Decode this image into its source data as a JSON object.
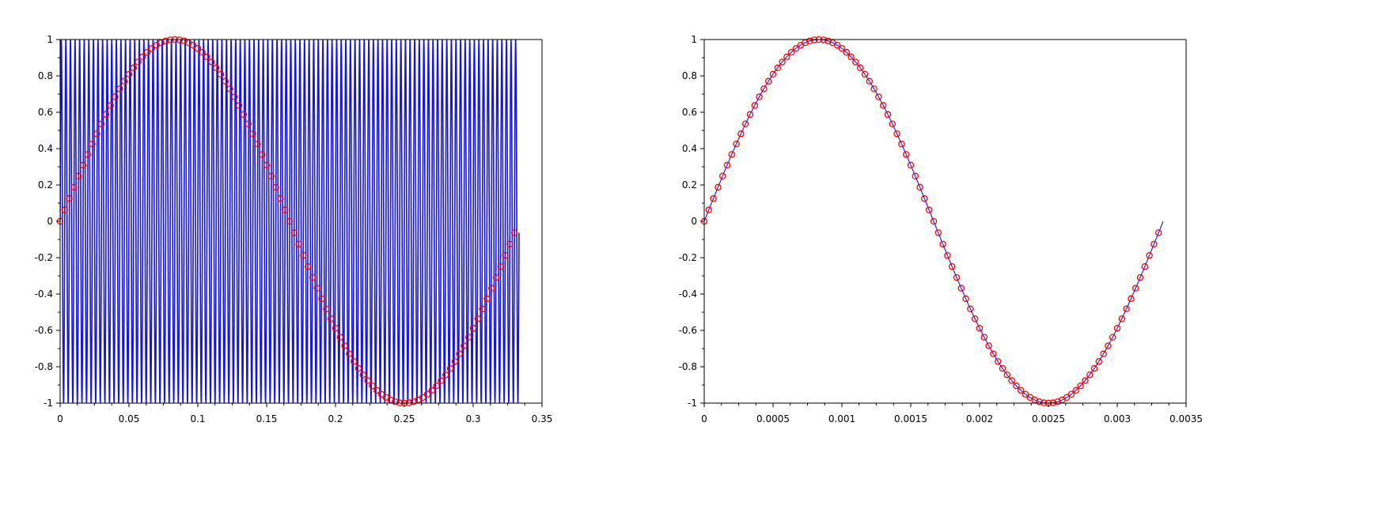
{
  "figure": {
    "background": "#ffffff",
    "axis_color": "#000000",
    "series_colors": {
      "signal": "#1414e6",
      "samples": "#ff0000"
    }
  },
  "chart_data": [
    {
      "type": "line",
      "title": "",
      "xlabel": "",
      "ylabel": "",
      "xlim": [
        0,
        0.35
      ],
      "ylim": [
        -1,
        1
      ],
      "grid": false,
      "xticks": [
        0,
        0.05,
        0.1,
        0.15,
        0.2,
        0.25,
        0.3,
        0.35
      ],
      "xtick_labels": [
        "0",
        "0.05",
        "0.1",
        "0.15",
        "0.2",
        "0.25",
        "0.3",
        "0.35"
      ],
      "yticks": [
        -1,
        -0.8,
        -0.6,
        -0.4,
        -0.2,
        0,
        0.2,
        0.4,
        0.6,
        0.8,
        1
      ],
      "ytick_labels": [
        "-1",
        "-0.8",
        "-0.6",
        "-0.4",
        "-0.2",
        "0",
        "0.2",
        "0.4",
        "0.6",
        "0.8",
        "1"
      ],
      "series": [
        {
          "style": "line",
          "color": "#1414e6",
          "function": "sin(2*pi*f*t)",
          "frequency": 300,
          "x_range": [
            0,
            0.3333
          ],
          "points": 3334
        },
        {
          "style": "circle-markers",
          "color": "#ff0000",
          "function": "sin(2*pi*f*t)",
          "frequency": 3,
          "x_range": [
            0,
            0.33
          ],
          "points": 100
        }
      ]
    },
    {
      "type": "line",
      "title": "",
      "xlabel": "",
      "ylabel": "",
      "xlim": [
        0,
        0.0035
      ],
      "ylim": [
        -1,
        1
      ],
      "grid": false,
      "xticks": [
        0,
        0.0005,
        0.001,
        0.0015,
        0.002,
        0.0025,
        0.003,
        0.0035
      ],
      "xtick_labels": [
        "0",
        "0.0005",
        "0.001",
        "0.0015",
        "0.002",
        "0.0025",
        "0.003",
        "0.0035"
      ],
      "yticks": [
        -1,
        -0.8,
        -0.6,
        -0.4,
        -0.2,
        0,
        0.2,
        0.4,
        0.6,
        0.8,
        1
      ],
      "ytick_labels": [
        "-1",
        "-0.8",
        "-0.6",
        "-0.4",
        "-0.2",
        "0",
        "0.2",
        "0.4",
        "0.6",
        "0.8",
        "1"
      ],
      "series": [
        {
          "style": "line",
          "color": "#1414e6",
          "function": "sin(2*pi*f*t)",
          "frequency": 300,
          "x_range": [
            0,
            0.003333
          ],
          "points": 400
        },
        {
          "style": "circle-markers",
          "color": "#ff0000",
          "function": "sin(2*pi*f*t)",
          "frequency": 300,
          "x_range": [
            0,
            0.0033
          ],
          "points": 100
        }
      ]
    }
  ]
}
